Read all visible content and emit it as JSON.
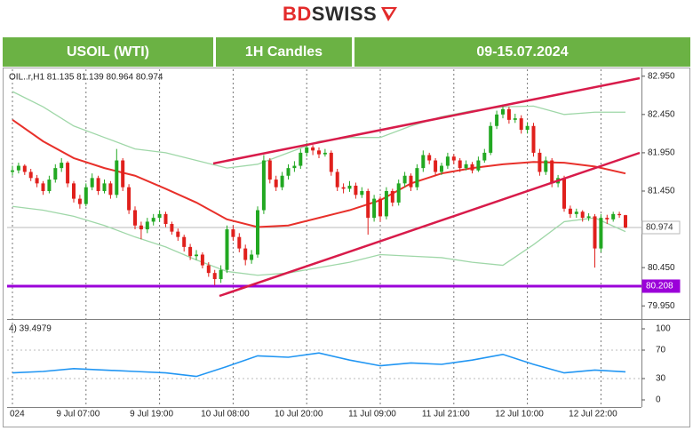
{
  "header": {
    "logo": [
      "BD",
      "SWISS"
    ],
    "instrument": "USOIL (WTI)",
    "timeframe": "1H Candles",
    "period": "09-15.07.2024"
  },
  "chart_data": {
    "type": "candlestick",
    "info": "OIL..r,H1  81.135 81.139 80.964 80.974",
    "categories": [
      "024",
      null,
      null,
      null,
      null,
      null,
      null,
      null,
      null,
      null,
      null,
      null,
      "9 Jul 07:00",
      null,
      null,
      null,
      null,
      null,
      null,
      null,
      null,
      null,
      null,
      null,
      "9 Jul 19:00",
      null,
      null,
      null,
      null,
      null,
      null,
      null,
      null,
      null,
      null,
      null,
      "10 Jul 08:00",
      null,
      null,
      null,
      null,
      null,
      null,
      null,
      null,
      null,
      null,
      null,
      "10 Jul 20:00",
      null,
      null,
      null,
      null,
      null,
      null,
      null,
      null,
      null,
      null,
      null,
      "11 Jul 09:00",
      null,
      null,
      null,
      null,
      null,
      null,
      null,
      null,
      null,
      null,
      null,
      "11 Jul 21:00",
      null,
      null,
      null,
      null,
      null,
      null,
      null,
      null,
      null,
      null,
      null,
      "12 Jul 10:00",
      null,
      null,
      null,
      null,
      null,
      null,
      null,
      null,
      null,
      null,
      null,
      "12 Jul 22:00",
      null,
      null,
      null,
      null
    ],
    "ohlc": [
      [
        81.7,
        81.78,
        81.65,
        81.72
      ],
      [
        81.72,
        81.82,
        81.68,
        81.78
      ],
      [
        81.78,
        81.8,
        81.66,
        81.7
      ],
      [
        81.7,
        81.74,
        81.58,
        81.62
      ],
      [
        81.62,
        81.66,
        81.5,
        81.55
      ],
      [
        81.55,
        81.58,
        81.4,
        81.45
      ],
      [
        81.45,
        81.65,
        81.42,
        81.6
      ],
      [
        81.6,
        81.8,
        81.56,
        81.75
      ],
      [
        81.75,
        81.88,
        81.7,
        81.82
      ],
      [
        81.82,
        81.84,
        81.5,
        81.55
      ],
      [
        81.55,
        81.58,
        81.3,
        81.35
      ],
      [
        81.35,
        81.4,
        81.22,
        81.28
      ],
      [
        81.28,
        81.55,
        81.25,
        81.5
      ],
      [
        81.5,
        81.68,
        81.46,
        81.62
      ],
      [
        81.62,
        81.65,
        81.4,
        81.45
      ],
      [
        81.45,
        81.6,
        81.42,
        81.55
      ],
      [
        81.55,
        81.58,
        81.35,
        81.4
      ],
      [
        81.4,
        82.0,
        81.36,
        81.85
      ],
      [
        81.85,
        81.88,
        81.45,
        81.5
      ],
      [
        81.5,
        81.54,
        81.15,
        81.2
      ],
      [
        81.2,
        81.25,
        80.95,
        81.0
      ],
      [
        81.0,
        81.05,
        80.82,
        80.95
      ],
      [
        80.95,
        81.1,
        80.9,
        81.05
      ],
      [
        81.05,
        81.15,
        81.0,
        81.1
      ],
      [
        81.1,
        81.2,
        81.05,
        81.15
      ],
      [
        81.15,
        81.18,
        80.98,
        81.02
      ],
      [
        81.02,
        81.05,
        80.88,
        80.92
      ],
      [
        80.92,
        80.96,
        80.8,
        80.85
      ],
      [
        80.85,
        80.88,
        80.66,
        80.72
      ],
      [
        80.72,
        80.76,
        80.55,
        80.6
      ],
      [
        80.6,
        80.68,
        80.55,
        80.62
      ],
      [
        80.62,
        80.65,
        80.44,
        80.48
      ],
      [
        80.48,
        80.52,
        80.33,
        80.38
      ],
      [
        80.38,
        80.42,
        80.22,
        80.3
      ],
      [
        80.3,
        80.48,
        80.25,
        80.42
      ],
      [
        80.42,
        81.0,
        80.38,
        80.95
      ],
      [
        80.95,
        81.0,
        80.8,
        80.85
      ],
      [
        80.85,
        80.9,
        80.65,
        80.7
      ],
      [
        80.7,
        80.75,
        80.48,
        80.55
      ],
      [
        80.55,
        80.68,
        80.5,
        80.62
      ],
      [
        80.62,
        81.25,
        80.58,
        81.2
      ],
      [
        81.2,
        81.92,
        81.15,
        81.85
      ],
      [
        81.85,
        81.88,
        81.55,
        81.6
      ],
      [
        81.6,
        81.65,
        81.45,
        81.5
      ],
      [
        81.5,
        81.7,
        81.46,
        81.65
      ],
      [
        81.65,
        81.8,
        81.6,
        81.75
      ],
      [
        81.75,
        81.84,
        81.7,
        81.78
      ],
      [
        81.78,
        82.0,
        81.74,
        81.95
      ],
      [
        81.95,
        82.08,
        81.9,
        82.02
      ],
      [
        82.02,
        82.05,
        81.92,
        81.98
      ],
      [
        81.98,
        82.02,
        81.88,
        81.93
      ],
      [
        81.93,
        82.0,
        81.9,
        81.95
      ],
      [
        81.95,
        81.98,
        81.65,
        81.7
      ],
      [
        81.7,
        81.74,
        81.45,
        81.5
      ],
      [
        81.5,
        81.55,
        81.42,
        81.48
      ],
      [
        81.48,
        81.58,
        81.44,
        81.52
      ],
      [
        81.52,
        81.56,
        81.35,
        81.4
      ],
      [
        81.4,
        81.5,
        81.36,
        81.45
      ],
      [
        81.45,
        81.48,
        80.88,
        81.1
      ],
      [
        81.1,
        81.4,
        81.05,
        81.35
      ],
      [
        81.35,
        81.38,
        81.05,
        81.12
      ],
      [
        81.12,
        81.5,
        81.08,
        81.45
      ],
      [
        81.45,
        81.48,
        81.25,
        81.3
      ],
      [
        81.3,
        81.6,
        81.26,
        81.55
      ],
      [
        81.55,
        81.7,
        81.5,
        81.65
      ],
      [
        81.65,
        81.68,
        81.45,
        81.5
      ],
      [
        81.5,
        81.8,
        81.46,
        81.75
      ],
      [
        81.75,
        81.98,
        81.7,
        81.92
      ],
      [
        81.92,
        81.95,
        81.8,
        81.85
      ],
      [
        81.85,
        81.88,
        81.65,
        81.7
      ],
      [
        81.7,
        81.82,
        81.66,
        81.78
      ],
      [
        81.78,
        81.95,
        81.74,
        81.9
      ],
      [
        81.9,
        81.93,
        81.8,
        81.85
      ],
      [
        81.85,
        81.88,
        81.7,
        81.75
      ],
      [
        81.75,
        81.85,
        81.72,
        81.8
      ],
      [
        81.8,
        81.83,
        81.68,
        81.72
      ],
      [
        81.72,
        81.9,
        81.7,
        81.85
      ],
      [
        81.85,
        82.0,
        81.82,
        81.95
      ],
      [
        81.95,
        82.35,
        81.92,
        82.3
      ],
      [
        82.3,
        82.5,
        82.26,
        82.45
      ],
      [
        82.45,
        82.58,
        82.4,
        82.52
      ],
      [
        82.52,
        82.55,
        82.33,
        82.38
      ],
      [
        82.38,
        82.46,
        82.34,
        82.4
      ],
      [
        82.4,
        82.44,
        82.2,
        82.25
      ],
      [
        82.25,
        82.35,
        82.2,
        82.3
      ],
      [
        82.3,
        82.34,
        81.9,
        81.95
      ],
      [
        81.95,
        82.0,
        81.65,
        81.7
      ],
      [
        81.7,
        81.9,
        81.66,
        81.85
      ],
      [
        81.85,
        81.88,
        81.5,
        81.55
      ],
      [
        81.55,
        81.66,
        81.5,
        81.62
      ],
      [
        81.62,
        81.65,
        81.18,
        81.22
      ],
      [
        81.22,
        81.26,
        81.1,
        81.15
      ],
      [
        81.15,
        81.22,
        81.1,
        81.18
      ],
      [
        81.18,
        81.2,
        81.05,
        81.1
      ],
      [
        81.1,
        81.16,
        81.06,
        81.12
      ],
      [
        81.12,
        81.15,
        80.45,
        80.7
      ],
      [
        80.7,
        81.15,
        80.65,
        81.1
      ],
      [
        81.1,
        81.14,
        81.02,
        81.08
      ],
      [
        81.08,
        81.18,
        81.05,
        81.15
      ],
      [
        81.15,
        81.18,
        81.1,
        81.135
      ],
      [
        81.135,
        81.139,
        80.964,
        80.974
      ]
    ],
    "up_color": "#22a822",
    "down_color": "#e0201c",
    "overlays": [
      {
        "color": "#9fd7a8",
        "values": [
          82.75,
          82.55,
          82.3,
          82.15,
          82.0,
          81.95,
          81.85,
          81.75,
          81.8,
          81.95,
          82.1,
          82.15,
          82.15,
          82.3,
          82.42,
          82.5,
          82.55,
          82.56,
          82.45,
          82.48,
          82.48
        ]
      },
      {
        "color": "#9fd7a8",
        "values": [
          81.25,
          81.2,
          81.12,
          81.0,
          80.85,
          80.72,
          80.55,
          80.4,
          80.35,
          80.38,
          80.45,
          80.52,
          80.62,
          80.6,
          80.58,
          80.52,
          80.48,
          80.75,
          81.05,
          81.1,
          80.92
        ]
      },
      {
        "color": "#e8302a",
        "values": [
          82.38,
          82.1,
          81.88,
          81.75,
          81.65,
          81.48,
          81.3,
          81.08,
          80.98,
          81.0,
          81.1,
          81.2,
          81.33,
          81.55,
          81.68,
          81.75,
          81.8,
          81.83,
          81.82,
          81.77,
          81.68
        ]
      }
    ],
    "hlines": [
      {
        "value": 80.974,
        "color": "#b8b8b8",
        "label_bg": "#ffffff",
        "label_fg": "#333333"
      },
      {
        "value": 80.208,
        "color": "#9b00d9",
        "label_bg": "#9b00d9",
        "label_fg": "#ffffff"
      }
    ],
    "ylim": [
      79.79,
      83.04
    ],
    "yticks": [
      {
        "value": 79.95,
        "label": "79.950"
      },
      {
        "value": 80.45,
        "label": "80.450"
      },
      {
        "value": 80.95,
        "label": "80.950"
      },
      {
        "value": 81.45,
        "label": "81.450"
      },
      {
        "value": 81.95,
        "label": "81.950"
      },
      {
        "value": 82.45,
        "label": "82.450"
      },
      {
        "value": 82.95,
        "label": "82.950"
      }
    ],
    "indicator": {
      "label": "4) 39.4979",
      "color": "#2196f3",
      "ylim": [
        -10,
        110
      ],
      "yticks": [
        0,
        30,
        70,
        100
      ],
      "values": [
        38,
        40,
        44,
        42,
        40,
        38,
        33,
        47,
        62,
        60,
        66,
        56,
        48,
        52,
        50,
        56,
        64,
        50,
        38,
        42,
        39.4979
      ]
    }
  }
}
